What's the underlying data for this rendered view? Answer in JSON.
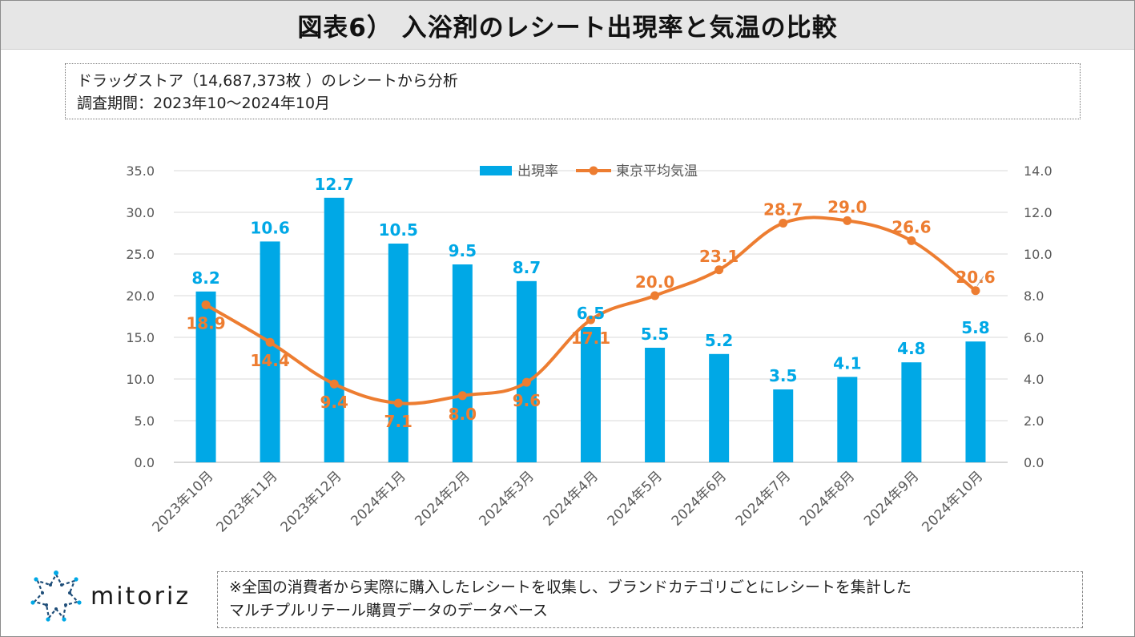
{
  "title": "図表6） 入浴剤のレシート出現率と気温の比較",
  "info": {
    "line1": "ドラッグストア（14,687,373枚 ）のレシートから分析",
    "line2": "調査期間：2023年10～2024年10月"
  },
  "logo": {
    "name": "mitoriz"
  },
  "note": {
    "line1": "※全国の消費者から実際に購入したレシートを収集し、ブランドカテゴリごとにレシートを集計した",
    "line2": "マルチプルリテール購買データのデータベース"
  },
  "colors": {
    "bar": "#00a8e6",
    "line": "#ed7d31",
    "grid": "#d9d9d9",
    "axis_text": "#595959"
  },
  "chart_data": {
    "type": "bar",
    "title": "",
    "categories": [
      "2023年10月",
      "2023年11月",
      "2023年12月",
      "2024年1月",
      "2024年2月",
      "2024年3月",
      "2024年4月",
      "2024年5月",
      "2024年6月",
      "2024年7月",
      "2024年8月",
      "2024年9月",
      "2024年10月"
    ],
    "series": [
      {
        "name": "出現率",
        "type": "bar",
        "axis": "right",
        "values": [
          8.2,
          10.6,
          12.7,
          10.5,
          9.5,
          8.7,
          6.5,
          5.5,
          5.2,
          3.5,
          4.1,
          4.8,
          5.8
        ]
      },
      {
        "name": "東京平均気温",
        "type": "line",
        "axis": "left",
        "values": [
          18.9,
          14.4,
          9.4,
          7.1,
          8.0,
          9.6,
          17.1,
          20.0,
          23.1,
          28.7,
          29.0,
          26.6,
          20.6
        ]
      }
    ],
    "y_left": {
      "range": [
        0,
        35
      ],
      "ticks": [
        "0.0",
        "5.0",
        "10.0",
        "15.0",
        "20.0",
        "25.0",
        "30.0",
        "35.0"
      ]
    },
    "y_right": {
      "range": [
        0,
        14
      ],
      "ticks": [
        "0.0",
        "2.0",
        "4.0",
        "6.0",
        "8.0",
        "10.0",
        "12.0",
        "14.0"
      ]
    },
    "grid": true,
    "legend": "top-center"
  }
}
